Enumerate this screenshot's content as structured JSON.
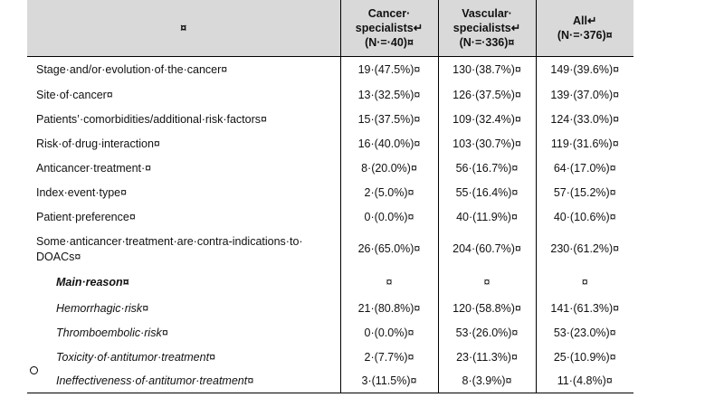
{
  "header": {
    "col0": "¤",
    "col1_line1": "Cancer·",
    "col1_line2": "specialists↵",
    "col1_line3": "(N·=·40)¤",
    "col2_line1": "Vascular·",
    "col2_line2": "specialists↵",
    "col2_line3": "(N·=·336)¤",
    "col3_line1": "All↵",
    "col3_line2": "(N·=·376)¤"
  },
  "rows": [
    {
      "label": "Stage·and/or·evolution·of·the·cancer¤",
      "c1": "19·(47.5%)¤",
      "c2": "130·(38.7%)¤",
      "c3": "149·(39.6%)¤"
    },
    {
      "label": "Site·of·cancer¤",
      "c1": "13·(32.5%)¤",
      "c2": "126·(37.5%)¤",
      "c3": "139·(37.0%)¤"
    },
    {
      "label": "Patients’·comorbidities/additional·risk·factors¤",
      "c1": "15·(37.5%)¤",
      "c2": "109·(32.4%)¤",
      "c3": "124·(33.0%)¤"
    },
    {
      "label": "Risk·of·drug·interaction¤",
      "c1": "16·(40.0%)¤",
      "c2": "103·(30.7%)¤",
      "c3": "119·(31.6%)¤"
    },
    {
      "label": "Anticancer·treatment·¤",
      "c1": "8·(20.0%)¤",
      "c2": "56·(16.7%)¤",
      "c3": "64·(17.0%)¤"
    },
    {
      "label": "Index·event·type¤",
      "c1": "2·(5.0%)¤",
      "c2": "55·(16.4%)¤",
      "c3": "57·(15.2%)¤"
    },
    {
      "label": "Patient·preference¤",
      "c1": "0·(0.0%)¤",
      "c2": "40·(11.9%)¤",
      "c3": "40·(10.6%)¤"
    },
    {
      "label_line1": "Some·anticancer·treatment·are·contra-indications·to·",
      "label_line2": "DOACs¤",
      "c1": "26·(65.0%)¤",
      "c2": "204·(60.7%)¤",
      "c3": "230·(61.2%)¤"
    },
    {
      "label": "Main·reason¤",
      "c1": "¤",
      "c2": "¤",
      "c3": "¤"
    },
    {
      "label": "Hemorrhagic·risk¤",
      "c1": "21·(80.8%)¤",
      "c2": "120·(58.8%)¤",
      "c3": "141·(61.3%)¤"
    },
    {
      "label": "Thromboembolic·risk¤",
      "c1": "0·(0.0%)¤",
      "c2": "53·(26.0%)¤",
      "c3": "53·(23.0%)¤"
    },
    {
      "label": "Toxicity·of·antitumor·treatment¤",
      "c1": "2·(7.7%)¤",
      "c2": "23·(11.3%)¤",
      "c3": "25·(10.9%)¤"
    },
    {
      "label": "Ineffectiveness·of·antitumor·treatment¤",
      "c1": "3·(11.5%)¤",
      "c2": "8·(3.9%)¤",
      "c3": "11·(4.8%)¤"
    }
  ]
}
